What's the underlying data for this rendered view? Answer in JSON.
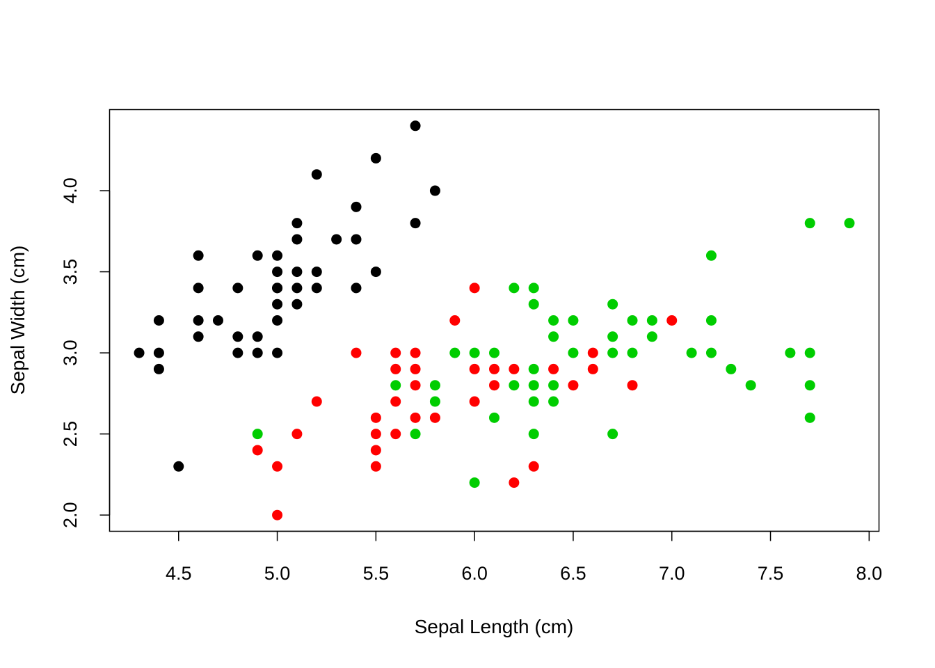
{
  "chart_data": {
    "type": "scatter",
    "title": "",
    "xlabel": "Sepal Length (cm)",
    "ylabel": "Sepal Width (cm)",
    "xlim": [
      4.15,
      8.05
    ],
    "ylim": [
      1.9,
      4.5
    ],
    "xticks": [
      4.5,
      5.0,
      5.5,
      6.0,
      6.5,
      7.0,
      7.5,
      8.0
    ],
    "xtick_labels": [
      "4.5",
      "5.0",
      "5.5",
      "6.0",
      "6.5",
      "7.0",
      "7.5",
      "8.0"
    ],
    "yticks": [
      2.0,
      2.5,
      3.0,
      3.5,
      4.0
    ],
    "ytick_labels": [
      "2.0",
      "2.5",
      "3.0",
      "3.5",
      "4.0"
    ],
    "grid": false,
    "legend": "none",
    "colors": [
      "#000000",
      "#ff0000",
      "#00cd00"
    ],
    "series": [
      {
        "color": "#000000",
        "x": [
          4.3,
          4.4,
          4.4,
          4.4,
          4.5,
          4.6,
          4.6,
          4.6,
          4.6,
          4.7,
          4.8,
          4.8,
          4.8,
          4.9,
          4.9,
          4.9,
          5.0,
          5.0,
          5.0,
          5.0,
          5.0,
          5.0,
          5.0,
          5.1,
          5.1,
          5.1,
          5.1,
          5.1,
          5.2,
          5.2,
          5.2,
          5.3,
          5.4,
          5.4,
          5.4,
          5.5,
          5.5,
          5.7,
          5.7,
          5.8
        ],
        "y": [
          3.0,
          3.2,
          3.0,
          2.9,
          2.3,
          3.6,
          3.4,
          3.2,
          3.1,
          3.2,
          3.4,
          3.1,
          3.0,
          3.6,
          3.1,
          3.0,
          3.6,
          3.5,
          3.4,
          3.3,
          3.2,
          3.0,
          3.4,
          3.8,
          3.7,
          3.5,
          3.4,
          3.3,
          4.1,
          3.5,
          3.4,
          3.7,
          3.9,
          3.7,
          3.4,
          4.2,
          3.5,
          4.4,
          3.8,
          4.0
        ]
      },
      {
        "color": "#ff0000",
        "x": [
          4.9,
          5.0,
          5.0,
          5.1,
          5.2,
          5.4,
          5.5,
          5.5,
          5.5,
          5.5,
          5.6,
          5.6,
          5.6,
          5.6,
          5.7,
          5.7,
          5.7,
          5.7,
          5.8,
          5.9,
          6.0,
          6.0,
          6.0,
          6.1,
          6.1,
          6.2,
          6.2,
          6.3,
          6.4,
          6.5,
          6.6,
          6.6,
          6.8,
          7.0
        ],
        "y": [
          2.4,
          2.3,
          2.0,
          2.5,
          2.7,
          3.0,
          2.6,
          2.5,
          2.4,
          2.3,
          3.0,
          2.9,
          2.7,
          2.5,
          3.0,
          2.9,
          2.8,
          2.6,
          2.6,
          3.2,
          3.4,
          2.9,
          2.7,
          2.9,
          2.8,
          2.9,
          2.2,
          2.3,
          2.9,
          2.8,
          3.0,
          2.9,
          2.8,
          3.2
        ]
      },
      {
        "color": "#00cd00",
        "x": [
          4.9,
          5.6,
          5.7,
          5.8,
          5.8,
          5.9,
          6.0,
          6.0,
          6.1,
          6.1,
          6.2,
          6.2,
          6.3,
          6.3,
          6.3,
          6.3,
          6.3,
          6.3,
          6.4,
          6.4,
          6.4,
          6.4,
          6.5,
          6.5,
          6.7,
          6.7,
          6.7,
          6.7,
          6.8,
          6.8,
          6.9,
          6.9,
          7.1,
          7.2,
          7.2,
          7.2,
          7.3,
          7.4,
          7.6,
          7.7,
          7.7,
          7.7,
          7.7,
          7.9
        ],
        "y": [
          2.5,
          2.8,
          2.5,
          2.8,
          2.7,
          3.0,
          3.0,
          2.2,
          3.0,
          2.6,
          3.4,
          2.8,
          3.4,
          3.3,
          2.9,
          2.8,
          2.7,
          2.5,
          3.2,
          3.1,
          2.8,
          2.7,
          3.2,
          3.0,
          3.3,
          3.1,
          3.0,
          2.5,
          3.2,
          3.0,
          3.2,
          3.1,
          3.0,
          3.6,
          3.2,
          3.0,
          2.9,
          2.8,
          3.0,
          3.8,
          3.0,
          2.8,
          2.6,
          3.8
        ]
      }
    ]
  }
}
